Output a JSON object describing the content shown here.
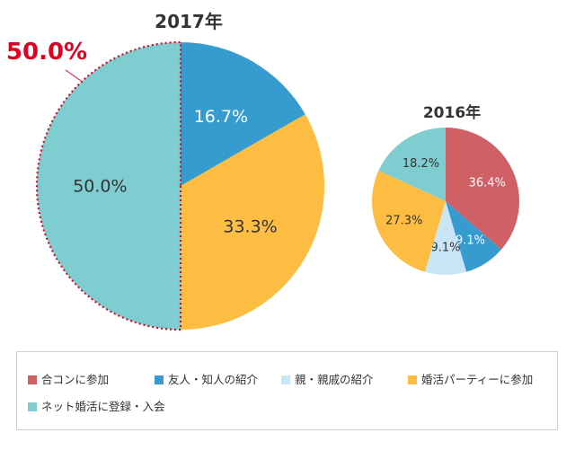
{
  "chart_data": [
    {
      "type": "pie",
      "title": "2017年",
      "slices": [
        {
          "label": "合コンに参加",
          "value": 0,
          "display": "",
          "color": "#cf6166"
        },
        {
          "label": "友人・知人の紹介",
          "value": 16.7,
          "display": "16.7%",
          "color": "#369ccf"
        },
        {
          "label": "親・親戚の紹介",
          "value": 0,
          "display": "",
          "color": "#c9e6f6"
        },
        {
          "label": "婚活パーティーに参加",
          "value": 33.3,
          "display": "33.3%",
          "color": "#fdbd42"
        },
        {
          "label": "ネット婚活に登録・入会",
          "value": 50.0,
          "display": "50.0%",
          "color": "#7ecdd0"
        }
      ],
      "callout": {
        "text": "50.0%",
        "color": "#e0001f",
        "highlight": "ネット婚活に登録・入会"
      }
    },
    {
      "type": "pie",
      "title": "2016年",
      "slices": [
        {
          "label": "合コンに参加",
          "value": 36.4,
          "display": "36.4%",
          "color": "#cf6166"
        },
        {
          "label": "友人・知人の紹介",
          "value": 9.1,
          "display": "9.1%",
          "color": "#369ccf"
        },
        {
          "label": "親・親戚の紹介",
          "value": 9.1,
          "display": "9.1%",
          "color": "#c9e6f6"
        },
        {
          "label": "婚活パーティーに参加",
          "value": 27.3,
          "display": "27.3%",
          "color": "#fdbd42"
        },
        {
          "label": "ネット婚活に登録・入会",
          "value": 18.2,
          "display": "18.2%",
          "color": "#7ecdd0"
        }
      ]
    }
  ],
  "legend": [
    {
      "label": "合コンに参加",
      "color": "#cf6166"
    },
    {
      "label": "友人・知人の紹介",
      "color": "#369ccf"
    },
    {
      "label": "親・親戚の紹介",
      "color": "#c9e6f6"
    },
    {
      "label": "婚活パーティーに参加",
      "color": "#fdbd42"
    },
    {
      "label": "ネット婚活に登録・入会",
      "color": "#7ecdd0"
    }
  ]
}
